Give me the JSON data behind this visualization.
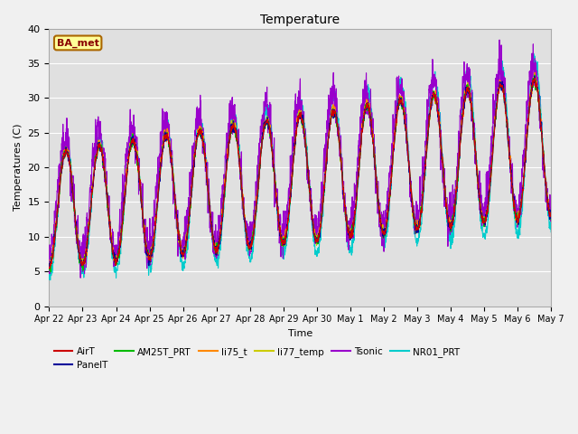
{
  "title": "Temperature",
  "xlabel": "Time",
  "ylabel": "Temperatures (C)",
  "ylim": [
    0,
    40
  ],
  "annotation": "BA_met",
  "fig_facecolor": "#f0f0f0",
  "ax_facecolor": "#e0e0e0",
  "series": {
    "AirT": {
      "color": "#cc0000",
      "lw": 0.8,
      "zorder": 8
    },
    "PanelT": {
      "color": "#000099",
      "lw": 0.8,
      "zorder": 7
    },
    "AM25T_PRT": {
      "color": "#00bb00",
      "lw": 0.8,
      "zorder": 6
    },
    "li75_t": {
      "color": "#ff8800",
      "lw": 0.8,
      "zorder": 5
    },
    "li77_temp": {
      "color": "#cccc00",
      "lw": 0.8,
      "zorder": 5
    },
    "Tsonic": {
      "color": "#9900cc",
      "lw": 0.8,
      "zorder": 4
    },
    "NR01_PRT": {
      "color": "#00cccc",
      "lw": 0.8,
      "zorder": 3
    }
  },
  "xtick_labels": [
    "Apr 22",
    "Apr 23",
    "Apr 24",
    "Apr 25",
    "Apr 26",
    "Apr 27",
    "Apr 28",
    "Apr 29",
    "Apr 30",
    "May 1",
    "May 2",
    "May 3",
    "May 4",
    "May 5",
    "May 6",
    "May 7"
  ],
  "ytick_labels": [
    0,
    5,
    10,
    15,
    20,
    25,
    30,
    35,
    40
  ],
  "legend_row1": [
    "AirT",
    "PanelT",
    "AM25T_PRT",
    "li75_t",
    "li77_temp",
    "Tsonic"
  ],
  "legend_row2": [
    "NR01_PRT"
  ]
}
